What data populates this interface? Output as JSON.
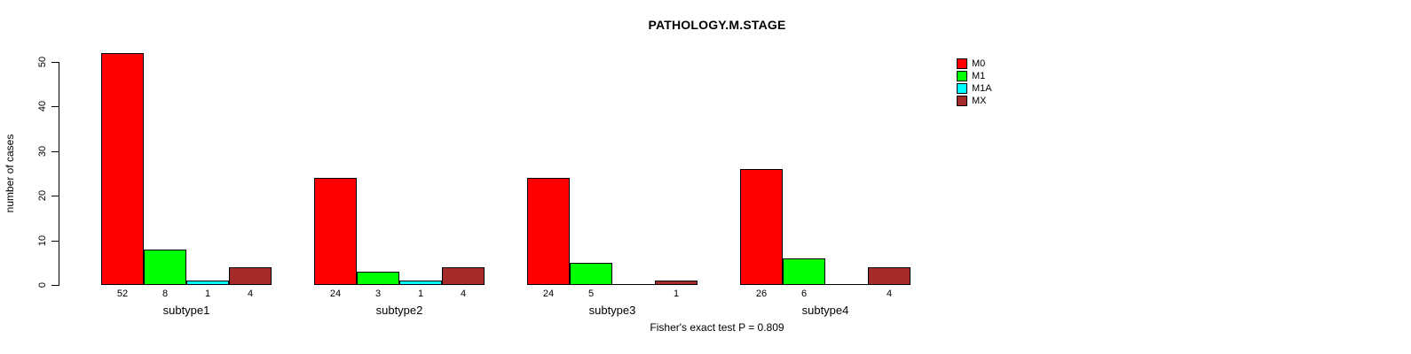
{
  "chart_data": {
    "type": "bar",
    "title": "PATHOLOGY.M.STAGE",
    "xlabel": "",
    "ylabel": "number of cases",
    "ylim": [
      0,
      50
    ],
    "yticks": [
      0,
      10,
      20,
      30,
      40,
      50
    ],
    "categories": [
      "subtype1",
      "subtype2",
      "subtype3",
      "subtype4"
    ],
    "series": [
      {
        "name": "M0",
        "color": "#ff0000",
        "values": [
          52,
          24,
          24,
          26
        ]
      },
      {
        "name": "M1",
        "color": "#00ff00",
        "values": [
          8,
          3,
          5,
          6
        ]
      },
      {
        "name": "M1A",
        "color": "#00ffff",
        "values": [
          1,
          1,
          0,
          0
        ]
      },
      {
        "name": "MX",
        "color": "#a52a2a",
        "values": [
          4,
          4,
          1,
          4
        ]
      }
    ],
    "bar_value_labels_shown": true,
    "zero_values_unlabeled": true,
    "grid": false,
    "legend_position": "top-right",
    "annotation": "Fisher's exact test P = 0.809",
    "axis_color": "#000000",
    "bar_border_color": "#000000",
    "background_color": "#ffffff"
  }
}
